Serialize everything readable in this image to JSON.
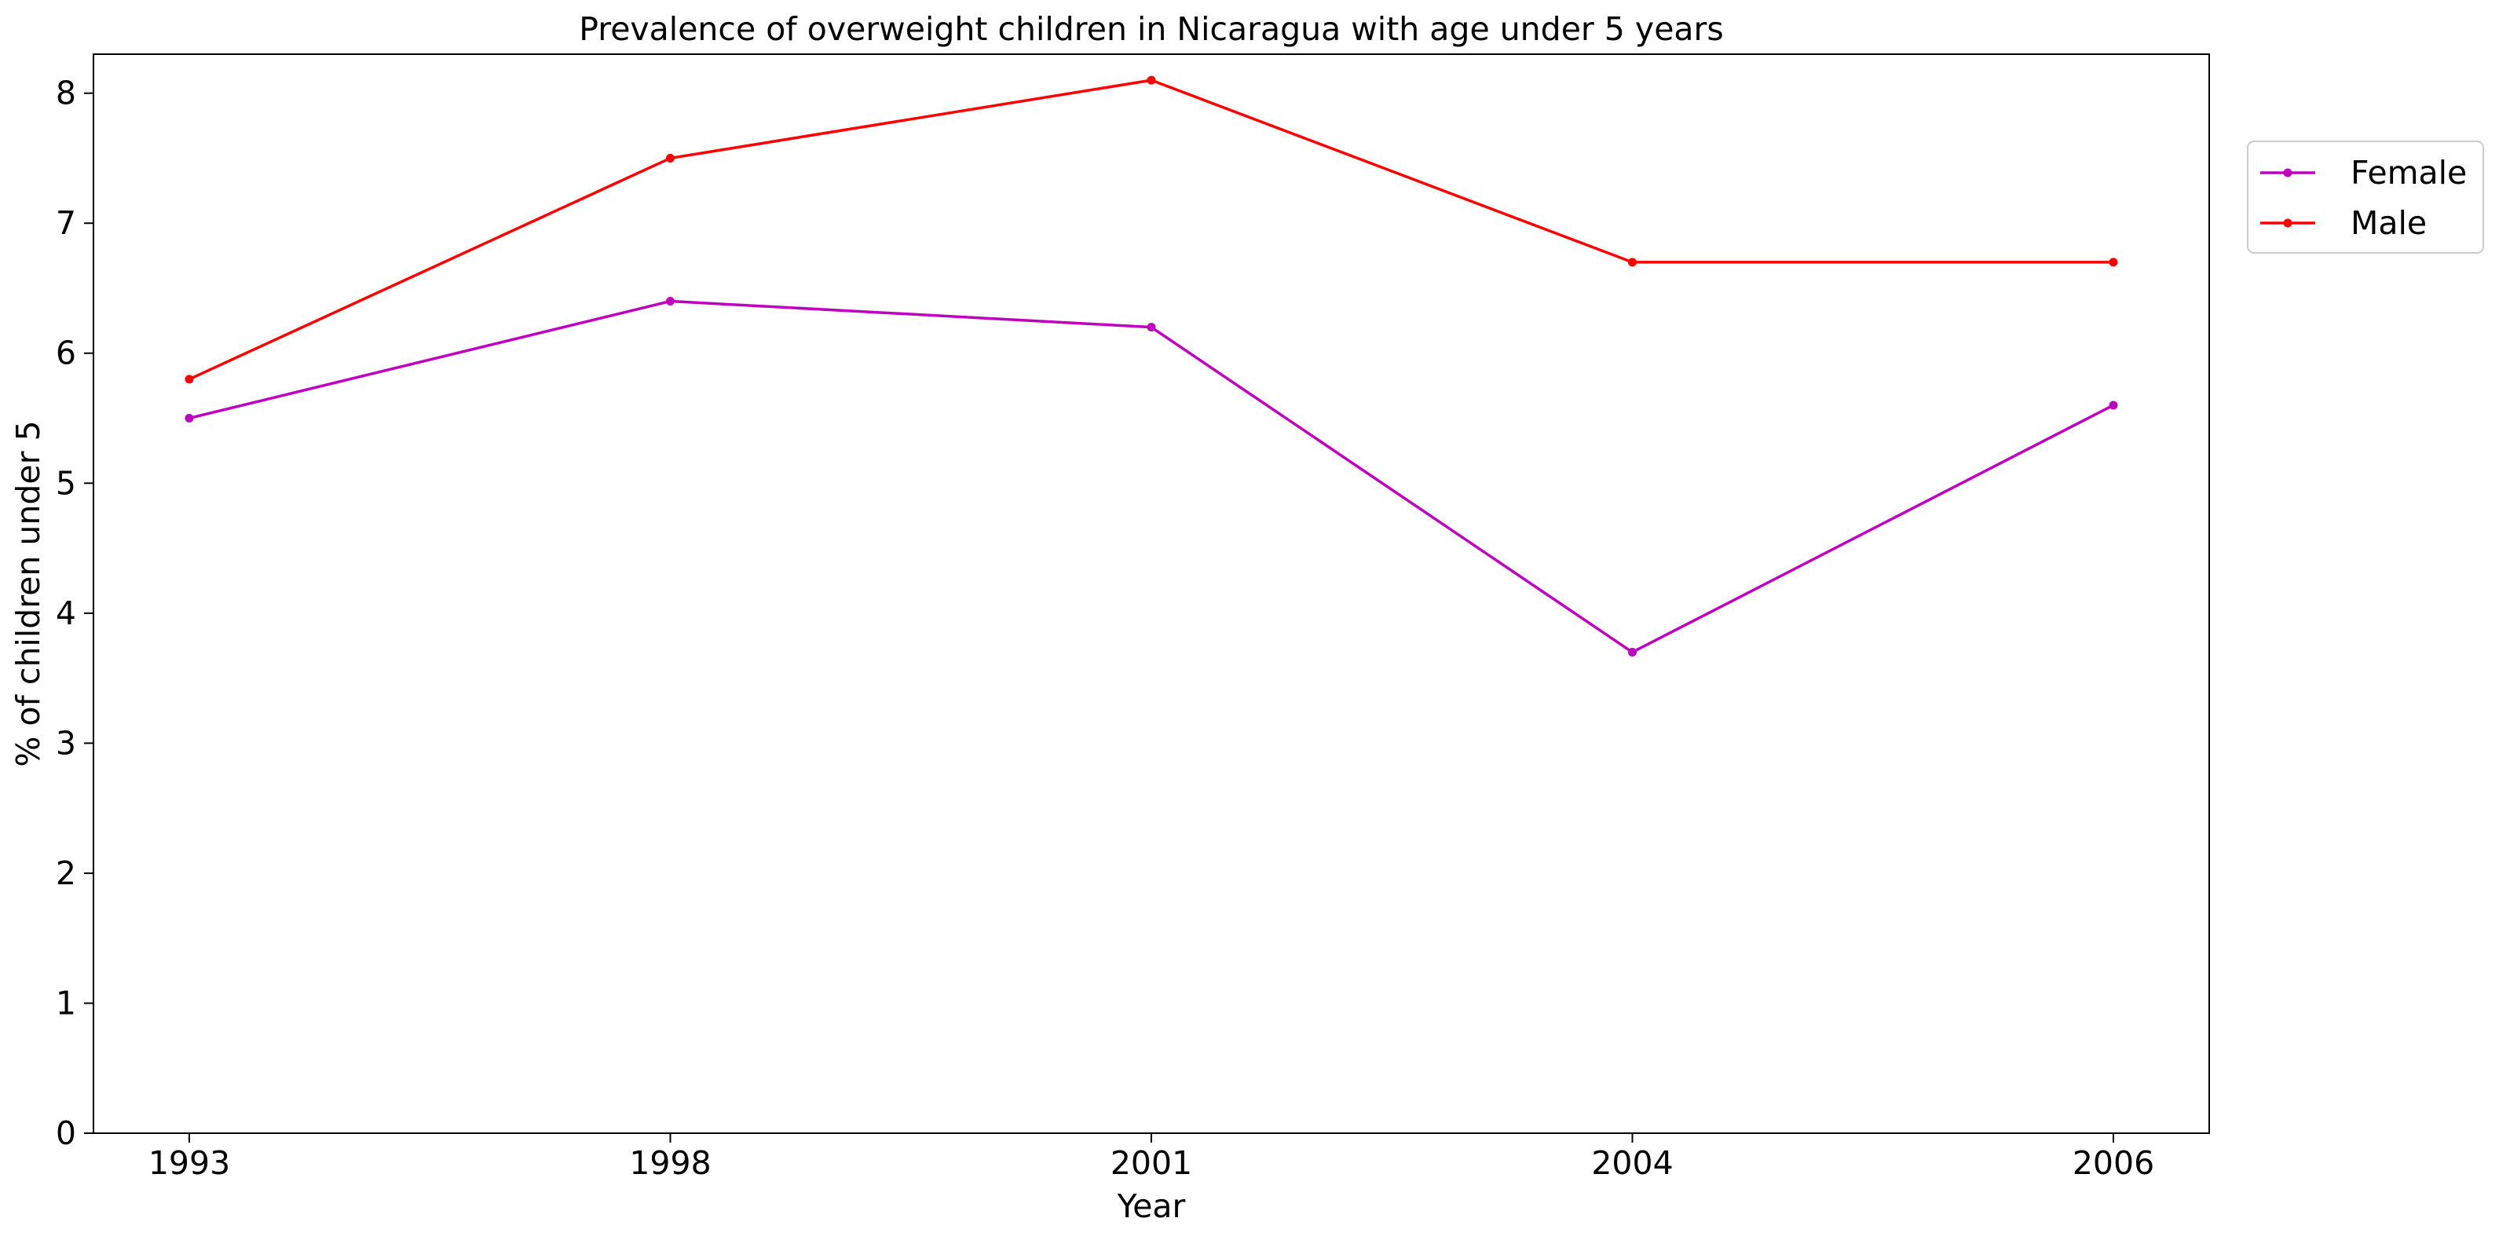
{
  "chart_data": {
    "type": "line",
    "title": "Prevalence of overweight children in Nicaragua with age under 5 years",
    "xlabel": "Year",
    "ylabel": "% of children under 5",
    "categories": [
      "1993",
      "1998",
      "2001",
      "2004",
      "2006"
    ],
    "ylim": [
      0,
      8.3
    ],
    "yticks": [
      0,
      1,
      2,
      3,
      4,
      5,
      6,
      7,
      8
    ],
    "ytick_labels": [
      "0",
      "1",
      "2",
      "3",
      "4",
      "5",
      "6",
      "7",
      "8"
    ],
    "grid": false,
    "legend_position": "outside-top-right",
    "series": [
      {
        "name": "Female",
        "color": "#bf00bf",
        "values": [
          5.5,
          6.4,
          6.2,
          3.7,
          5.6
        ]
      },
      {
        "name": "Male",
        "color": "#ff0000",
        "values": [
          5.8,
          7.5,
          8.1,
          6.7,
          6.7
        ]
      }
    ]
  }
}
